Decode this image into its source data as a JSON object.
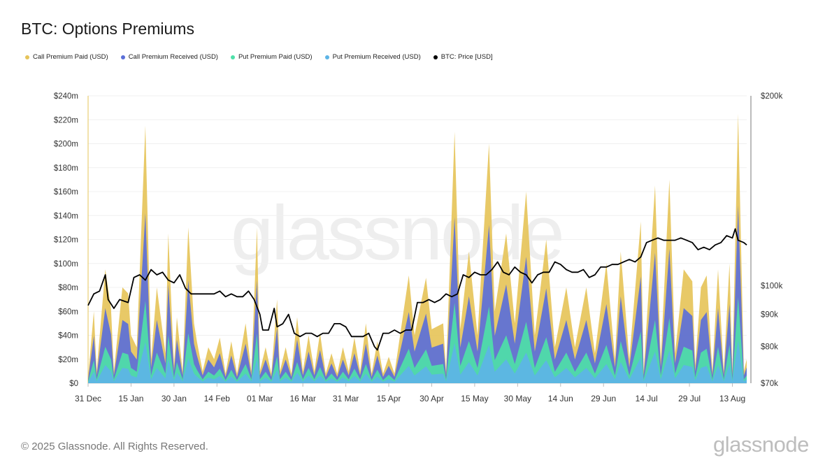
{
  "title": "BTC: Options Premiums",
  "watermark": "glassnode",
  "footer": {
    "copyright": "© 2025 Glassnode. All Rights Reserved.",
    "logo": "glassnode"
  },
  "colors": {
    "call_paid": "#e6c45a",
    "call_received": "#5b6fd8",
    "put_paid": "#4ee0a8",
    "put_received": "#5db4e6",
    "price": "#000000",
    "grid": "#f0f0f0",
    "axis_text": "#333333"
  },
  "chart_data": {
    "type": "area",
    "stacked": true,
    "legend": [
      {
        "name": "Call Premium Paid (USD)",
        "color": "#e6c45a"
      },
      {
        "name": "Call Premium Received (USD)",
        "color": "#5b6fd8"
      },
      {
        "name": "Put Premium Paid (USD)",
        "color": "#4ee0a8"
      },
      {
        "name": "Put Premium Received (USD)",
        "color": "#5db4e6"
      },
      {
        "name": "BTC: Price [USD]",
        "color": "#000000"
      }
    ],
    "legend_placement": "top-left",
    "x_ticks": [
      "31 Dec",
      "15 Jan",
      "30 Jan",
      "14 Feb",
      "01 Mar",
      "16 Mar",
      "31 Mar",
      "15 Apr",
      "30 Apr",
      "15 May",
      "30 May",
      "14 Jun",
      "29 Jun",
      "14 Jul",
      "29 Jul",
      "13 Aug"
    ],
    "x_range_days": [
      0,
      230
    ],
    "y_left": {
      "ticks": [
        "$0",
        "$20m",
        "$40m",
        "$60m",
        "$80m",
        "$100m",
        "$120m",
        "$140m",
        "$160m",
        "$180m",
        "$200m",
        "$220m",
        "$240m"
      ],
      "range_m": [
        0,
        240
      ]
    },
    "y_right": {
      "ticks": [
        "$70k",
        "$80k",
        "$90k",
        "$100k",
        "$200k"
      ],
      "scale": "log",
      "range_k": [
        70,
        200
      ]
    },
    "grid": true,
    "premium_totals_m": [
      [
        0,
        5
      ],
      [
        2,
        60
      ],
      [
        3,
        10
      ],
      [
        6,
        95
      ],
      [
        8,
        62
      ],
      [
        9,
        10
      ],
      [
        12,
        80
      ],
      [
        14,
        75
      ],
      [
        15,
        40
      ],
      [
        17,
        30
      ],
      [
        20,
        215
      ],
      [
        22,
        20
      ],
      [
        24,
        80
      ],
      [
        27,
        25
      ],
      [
        28,
        125
      ],
      [
        30,
        15
      ],
      [
        31,
        55
      ],
      [
        33,
        10
      ],
      [
        35,
        130
      ],
      [
        37,
        50
      ],
      [
        38,
        35
      ],
      [
        40,
        10
      ],
      [
        42,
        30
      ],
      [
        44,
        20
      ],
      [
        46,
        38
      ],
      [
        48,
        8
      ],
      [
        50,
        35
      ],
      [
        52,
        8
      ],
      [
        55,
        50
      ],
      [
        57,
        10
      ],
      [
        59,
        130
      ],
      [
        60,
        10
      ],
      [
        62,
        30
      ],
      [
        64,
        8
      ],
      [
        66,
        70
      ],
      [
        67,
        10
      ],
      [
        69,
        30
      ],
      [
        71,
        8
      ],
      [
        73,
        55
      ],
      [
        75,
        10
      ],
      [
        77,
        40
      ],
      [
        79,
        10
      ],
      [
        81,
        42
      ],
      [
        83,
        8
      ],
      [
        85,
        25
      ],
      [
        87,
        8
      ],
      [
        89,
        30
      ],
      [
        91,
        10
      ],
      [
        93,
        38
      ],
      [
        95,
        10
      ],
      [
        97,
        50
      ],
      [
        99,
        8
      ],
      [
        101,
        35
      ],
      [
        103,
        8
      ],
      [
        105,
        22
      ],
      [
        107,
        8
      ],
      [
        112,
        90
      ],
      [
        114,
        40
      ],
      [
        118,
        88
      ],
      [
        120,
        45
      ],
      [
        124,
        50
      ],
      [
        125,
        10
      ],
      [
        128,
        210
      ],
      [
        130,
        45
      ],
      [
        133,
        110
      ],
      [
        136,
        40
      ],
      [
        140,
        200
      ],
      [
        142,
        60
      ],
      [
        146,
        125
      ],
      [
        149,
        50
      ],
      [
        153,
        160
      ],
      [
        156,
        40
      ],
      [
        160,
        120
      ],
      [
        163,
        30
      ],
      [
        167,
        80
      ],
      [
        170,
        30
      ],
      [
        174,
        80
      ],
      [
        177,
        25
      ],
      [
        181,
        100
      ],
      [
        184,
        20
      ],
      [
        186,
        110
      ],
      [
        189,
        20
      ],
      [
        193,
        135
      ],
      [
        194,
        10
      ],
      [
        198,
        165
      ],
      [
        200,
        20
      ],
      [
        203,
        170
      ],
      [
        205,
        25
      ],
      [
        208,
        95
      ],
      [
        211,
        85
      ],
      [
        212,
        15
      ],
      [
        214,
        80
      ],
      [
        216,
        90
      ],
      [
        218,
        10
      ],
      [
        220,
        95
      ],
      [
        222,
        10
      ],
      [
        224,
        100
      ],
      [
        225,
        10
      ],
      [
        227,
        225
      ],
      [
        229,
        10
      ],
      [
        230,
        20
      ]
    ],
    "btc_price_k": [
      [
        0,
        93
      ],
      [
        2,
        97
      ],
      [
        4,
        98
      ],
      [
        6,
        104
      ],
      [
        7,
        95
      ],
      [
        9,
        92
      ],
      [
        11,
        95
      ],
      [
        14,
        94
      ],
      [
        16,
        103
      ],
      [
        18,
        104
      ],
      [
        20,
        102
      ],
      [
        22,
        106
      ],
      [
        24,
        104
      ],
      [
        26,
        105
      ],
      [
        28,
        102
      ],
      [
        30,
        101
      ],
      [
        32,
        104
      ],
      [
        34,
        99
      ],
      [
        36,
        97
      ],
      [
        40,
        97
      ],
      [
        44,
        97
      ],
      [
        46,
        98
      ],
      [
        48,
        96
      ],
      [
        50,
        97
      ],
      [
        52,
        96
      ],
      [
        54,
        96
      ],
      [
        56,
        98
      ],
      [
        58,
        95
      ],
      [
        60,
        90
      ],
      [
        61,
        85
      ],
      [
        63,
        85
      ],
      [
        65,
        92
      ],
      [
        66,
        86
      ],
      [
        68,
        87
      ],
      [
        70,
        90
      ],
      [
        72,
        84
      ],
      [
        74,
        83
      ],
      [
        76,
        84
      ],
      [
        78,
        84
      ],
      [
        80,
        83
      ],
      [
        82,
        84
      ],
      [
        84,
        84
      ],
      [
        86,
        87
      ],
      [
        88,
        87
      ],
      [
        90,
        86
      ],
      [
        92,
        83
      ],
      [
        94,
        83
      ],
      [
        96,
        83
      ],
      [
        98,
        84
      ],
      [
        100,
        80
      ],
      [
        101,
        79
      ],
      [
        103,
        84
      ],
      [
        105,
        84
      ],
      [
        107,
        85
      ],
      [
        109,
        84
      ],
      [
        111,
        85
      ],
      [
        113,
        85
      ],
      [
        115,
        94
      ],
      [
        117,
        94
      ],
      [
        119,
        95
      ],
      [
        121,
        94
      ],
      [
        123,
        95
      ],
      [
        125,
        97
      ],
      [
        127,
        96
      ],
      [
        129,
        97
      ],
      [
        131,
        104
      ],
      [
        133,
        103
      ],
      [
        135,
        105
      ],
      [
        137,
        104
      ],
      [
        139,
        104
      ],
      [
        141,
        106
      ],
      [
        143,
        109
      ],
      [
        145,
        105
      ],
      [
        147,
        104
      ],
      [
        149,
        107
      ],
      [
        151,
        105
      ],
      [
        153,
        104
      ],
      [
        155,
        101
      ],
      [
        157,
        104
      ],
      [
        159,
        105
      ],
      [
        161,
        105
      ],
      [
        163,
        109
      ],
      [
        165,
        108
      ],
      [
        167,
        106
      ],
      [
        169,
        105
      ],
      [
        171,
        105
      ],
      [
        173,
        106
      ],
      [
        175,
        103
      ],
      [
        177,
        104
      ],
      [
        179,
        107
      ],
      [
        181,
        107
      ],
      [
        183,
        108
      ],
      [
        185,
        108
      ],
      [
        187,
        109
      ],
      [
        189,
        110
      ],
      [
        191,
        109
      ],
      [
        193,
        111
      ],
      [
        195,
        117
      ],
      [
        197,
        118
      ],
      [
        199,
        119
      ],
      [
        201,
        118
      ],
      [
        203,
        118
      ],
      [
        205,
        118
      ],
      [
        207,
        119
      ],
      [
        209,
        118
      ],
      [
        211,
        117
      ],
      [
        213,
        114
      ],
      [
        215,
        115
      ],
      [
        217,
        114
      ],
      [
        219,
        116
      ],
      [
        221,
        117
      ],
      [
        223,
        120
      ],
      [
        225,
        119
      ],
      [
        226,
        123
      ],
      [
        227,
        118
      ],
      [
        229,
        117
      ],
      [
        230,
        116
      ]
    ]
  }
}
